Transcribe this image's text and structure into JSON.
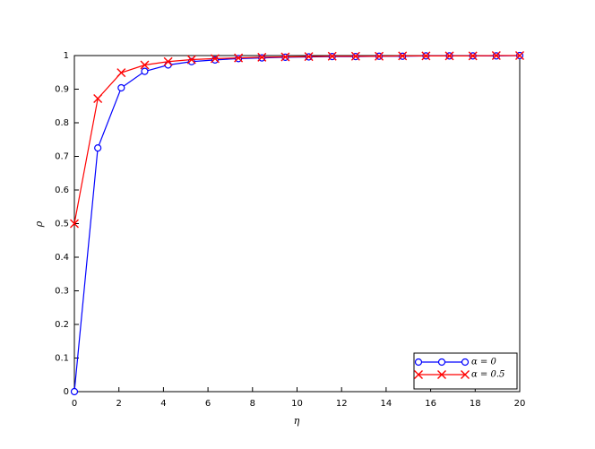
{
  "chart_data": {
    "type": "line",
    "xlabel": "η",
    "ylabel": "ρ",
    "x": [
      0,
      1.0526,
      2.1053,
      3.1579,
      4.2105,
      5.2632,
      6.3158,
      7.3684,
      8.4211,
      9.4737,
      10.5263,
      11.5789,
      12.6316,
      13.6842,
      14.7368,
      15.7895,
      16.8421,
      17.8947,
      18.9474,
      20
    ],
    "series": [
      {
        "name": "α = 0",
        "color": "#0000ff",
        "marker": "o",
        "values": [
          0,
          0.725,
          0.904,
          0.953,
          0.972,
          0.982,
          0.987,
          0.991,
          0.993,
          0.995,
          0.996,
          0.997,
          0.997,
          0.998,
          0.998,
          0.999,
          0.999,
          0.999,
          0.999,
          1.0
        ]
      },
      {
        "name": "α = 0.5",
        "color": "#ff0000",
        "marker": "x",
        "values": [
          0.5,
          0.872,
          0.949,
          0.972,
          0.982,
          0.988,
          0.991,
          0.993,
          0.995,
          0.996,
          0.997,
          0.998,
          0.998,
          0.998,
          0.999,
          0.999,
          0.999,
          0.999,
          1.0,
          1.0
        ]
      }
    ],
    "xlim": [
      0,
      20
    ],
    "xticks": [
      0,
      2,
      4,
      6,
      8,
      10,
      12,
      14,
      16,
      18,
      20
    ],
    "ylim": [
      0,
      1
    ],
    "yticks": [
      0,
      0.1,
      0.2,
      0.3,
      0.4,
      0.5,
      0.6,
      0.7,
      0.8,
      0.9,
      1
    ],
    "legend": "lower right"
  }
}
